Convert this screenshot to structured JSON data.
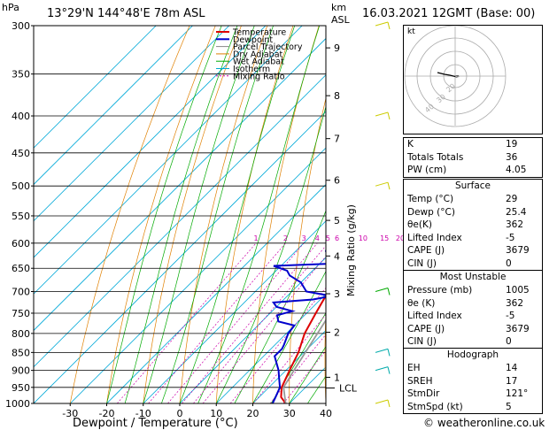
{
  "header": {
    "location": "13°29'N 144°48'E 78m ASL",
    "datetime": "16.03.2021 12GMT (Base: 00)",
    "hpa_label": "hPa",
    "km_label": "km",
    "asl_label": "ASL"
  },
  "footer": {
    "credit": "© weatheronline.co.uk"
  },
  "chart_data": {
    "type": "line",
    "xlabel": "Dewpoint / Temperature (°C)",
    "ylabel_right": "Mixing Ratio (g/kg)",
    "x_ticks": [
      -30,
      -20,
      -10,
      0,
      10,
      20,
      30,
      40
    ],
    "xlim": [
      -40,
      40
    ],
    "pressure_levels": [
      300,
      350,
      400,
      450,
      500,
      550,
      600,
      650,
      700,
      750,
      800,
      850,
      900,
      950,
      1000
    ],
    "ylim_hpa": [
      1000,
      300
    ],
    "y_scale": "log",
    "height_km_ticks": [
      {
        "label": "1",
        "p": 920
      },
      {
        "label": "2",
        "p": 797
      },
      {
        "label": "3",
        "p": 705
      },
      {
        "label": "4",
        "p": 625
      },
      {
        "label": "5",
        "p": 558
      },
      {
        "label": "6",
        "p": 491
      },
      {
        "label": "7",
        "p": 430
      },
      {
        "label": "8",
        "p": 375
      },
      {
        "label": "9",
        "p": 322
      }
    ],
    "lcl": {
      "label": "LCL",
      "p": 952
    },
    "mixing_ratio_labels": [
      "1",
      "2",
      "3",
      "4",
      "5",
      "6",
      "10",
      "15",
      "20",
      "25"
    ],
    "mixing_ratio_label_p": 600,
    "legend": [
      "Temperature",
      "Dewpoint",
      "Parcel Trajectory",
      "Dry Adiabat",
      "Wet Adiabat",
      "Isotherm",
      "Mixing Ratio"
    ],
    "legend_colors": [
      "#dd0000",
      "#0000cc",
      "#888888",
      "#e08000",
      "#00aa00",
      "#00aacc",
      "#cc00aa"
    ],
    "series": [
      {
        "name": "Temperature",
        "color": "#dd0000",
        "points": [
          [
            1000,
            29
          ],
          [
            980,
            26
          ],
          [
            950,
            23.5
          ],
          [
            900,
            21
          ],
          [
            850,
            18.5
          ],
          [
            800,
            15
          ],
          [
            750,
            12.5
          ],
          [
            700,
            10
          ],
          [
            650,
            6
          ],
          [
            600,
            2
          ],
          [
            550,
            -1.5
          ],
          [
            500,
            -5.5
          ],
          [
            450,
            -10.5
          ],
          [
            400,
            -16.5
          ],
          [
            375,
            -20
          ],
          [
            350,
            -23
          ]
        ]
      },
      {
        "name": "Dewpoint",
        "color": "#0000cc",
        "points": [
          [
            1000,
            25.4
          ],
          [
            980,
            24.5
          ],
          [
            950,
            23
          ],
          [
            920,
            20
          ],
          [
            900,
            18
          ],
          [
            860,
            13
          ],
          [
            840,
            13
          ],
          [
            830,
            12.5
          ],
          [
            800,
            10.5
          ],
          [
            780,
            10
          ],
          [
            770,
            4.5
          ],
          [
            755,
            2.5
          ],
          [
            745,
            5.5
          ],
          [
            735,
            0
          ],
          [
            725,
            -2
          ],
          [
            718,
            8
          ],
          [
            710,
            12
          ],
          [
            700,
            4
          ],
          [
            680,
            0
          ],
          [
            665,
            -5
          ],
          [
            655,
            -7
          ],
          [
            645,
            -12
          ],
          [
            640,
            5
          ],
          [
            630,
            10
          ],
          [
            620,
            3
          ],
          [
            615,
            -2
          ],
          [
            610,
            10
          ],
          [
            600,
            12
          ],
          [
            590,
            10
          ],
          [
            570,
            8
          ],
          [
            545,
            7
          ],
          [
            540,
            -2
          ],
          [
            535,
            -5
          ],
          [
            525,
            0
          ],
          [
            520,
            -4
          ],
          [
            510,
            -2
          ],
          [
            500,
            6
          ],
          [
            480,
            6
          ],
          [
            460,
            5
          ],
          [
            440,
            1
          ],
          [
            420,
            -3
          ],
          [
            400,
            -6
          ],
          [
            395,
            -7
          ],
          [
            385,
            -16
          ],
          [
            370,
            -14
          ],
          [
            365,
            -14
          ],
          [
            355,
            -13
          ],
          [
            345,
            -12
          ],
          [
            340,
            -12
          ],
          [
            335,
            -15
          ],
          [
            320,
            -13
          ],
          [
            310,
            -13
          ],
          [
            300,
            -16
          ],
          [
            290,
            -22
          ]
        ]
      },
      {
        "name": "Parcel Trajectory",
        "color": "#999999",
        "points": [
          [
            1000,
            29
          ],
          [
            950,
            24
          ],
          [
            900,
            22.2
          ],
          [
            850,
            20.4
          ],
          [
            800,
            18.5
          ],
          [
            750,
            16.5
          ],
          [
            700,
            14.2
          ],
          [
            650,
            11.8
          ],
          [
            600,
            9.1
          ],
          [
            550,
            6.1
          ],
          [
            500,
            2.6
          ],
          [
            450,
            -1.4
          ],
          [
            400,
            -6.2
          ],
          [
            350,
            -12
          ]
        ]
      }
    ]
  },
  "hodograph": {
    "label": "kt",
    "ring_labels": [
      "40",
      "30",
      "20"
    ]
  },
  "indices": {
    "k_label": "K",
    "k_val": "19",
    "tt_label": "Totals Totals",
    "tt_val": "36",
    "pw_label": "PW (cm)",
    "pw_val": "4.05"
  },
  "surface": {
    "title": "Surface",
    "rows": [
      {
        "label": "Temp (°C)",
        "value": "29"
      },
      {
        "label": "Dewp (°C)",
        "value": "25.4"
      },
      {
        "label": "θe(K)",
        "value": "362"
      },
      {
        "label": "Lifted Index",
        "value": "-5"
      },
      {
        "label": "CAPE (J)",
        "value": "3679"
      },
      {
        "label": "CIN (J)",
        "value": "0"
      }
    ]
  },
  "most_unstable": {
    "title": "Most Unstable",
    "rows": [
      {
        "label": "Pressure (mb)",
        "value": "1005"
      },
      {
        "label": "θe (K)",
        "value": "362"
      },
      {
        "label": "Lifted Index",
        "value": "-5"
      },
      {
        "label": "CAPE (J)",
        "value": "3679"
      },
      {
        "label": "CIN (J)",
        "value": "0"
      }
    ]
  },
  "hodograph_table": {
    "title": "Hodograph",
    "rows": [
      {
        "label": "EH",
        "value": "14"
      },
      {
        "label": "SREH",
        "value": "17"
      },
      {
        "label": "StmDir",
        "value": "121°"
      },
      {
        "label": "StmSpd (kt)",
        "value": "5"
      }
    ]
  }
}
